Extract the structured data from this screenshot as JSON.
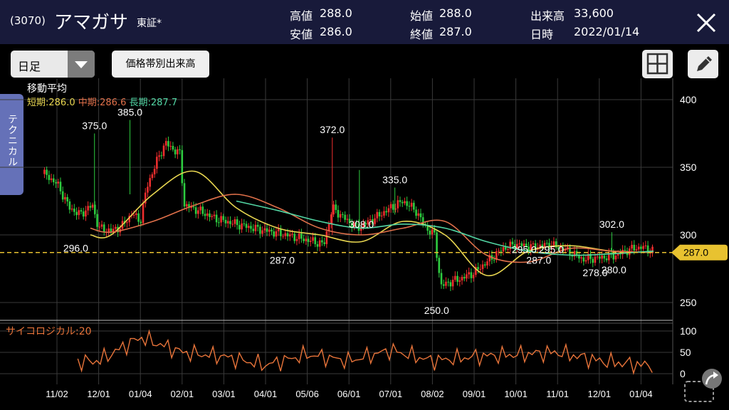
{
  "header": {
    "code": "(3070)",
    "name": "アマガサ",
    "exchange": "東証*",
    "stats": [
      {
        "label": "高値",
        "value": "288.0"
      },
      {
        "label": "安値",
        "value": "286.0"
      },
      {
        "label": "始値",
        "value": "288.0"
      },
      {
        "label": "終値",
        "value": "287.0"
      },
      {
        "label": "出来高",
        "value": "33,600"
      },
      {
        "label": "日時",
        "value": "2022/01/14"
      }
    ]
  },
  "toolbar": {
    "period": "日足",
    "volume_by_price": "価格帯別出来高"
  },
  "side_tab": {
    "label": "テクニカル"
  },
  "moving_average": {
    "title": "移動平均",
    "short_label": "短期:",
    "short_value": "286.0",
    "mid_label": "中期:",
    "mid_value": "286.6",
    "long_label": "長期:",
    "long_value": "287.7"
  },
  "oscillator": {
    "label": "サイコロジカル:20"
  },
  "colors": {
    "header_bg": "#181a3a",
    "up_candle": "#ef2e2e",
    "down_candle": "#2ecc40",
    "ma_short": "#e8d650",
    "ma_mid": "#e0704a",
    "ma_long": "#52d6a4",
    "oscillator": "#e8743a",
    "last_price": "#e8c230",
    "tab": "#6571b8"
  },
  "price_axis": {
    "ticks": [
      "400",
      "350",
      "300",
      "250"
    ],
    "min": 240,
    "max": 410
  },
  "osc_axis": {
    "ticks": [
      "100",
      "50",
      "0"
    ]
  },
  "x_ticks": [
    "11/02",
    "12/01",
    "01/04",
    "02/01",
    "03/01",
    "04/01",
    "05/06",
    "06/01",
    "07/01",
    "08/02",
    "09/01",
    "10/01",
    "11/01",
    "12/01",
    "01/04"
  ],
  "last_price": "287.0",
  "annotations": [
    {
      "text": "375.0",
      "date_idx": 0.9,
      "price": 375
    },
    {
      "text": "385.0",
      "date_idx": 1.75,
      "price": 385
    },
    {
      "text": "372.0",
      "date_idx": 6.6,
      "price": 372
    },
    {
      "text": "335.0",
      "date_idx": 8.1,
      "price": 335
    },
    {
      "text": "302.0",
      "date_idx": 13.3,
      "price": 302
    },
    {
      "text": "296.0",
      "date_idx": 0.45,
      "price": 296
    },
    {
      "text": "287.0",
      "date_idx": 5.4,
      "price": 287
    },
    {
      "text": "308.0",
      "date_idx": 7.3,
      "price": 308
    },
    {
      "text": "295.0",
      "date_idx": 11.2,
      "price": 295
    },
    {
      "text": "295.0",
      "date_idx": 11.85,
      "price": 295
    },
    {
      "text": "287.0",
      "date_idx": 11.55,
      "price": 287
    },
    {
      "text": "278.0",
      "date_idx": 12.9,
      "price": 278
    },
    {
      "text": "280.0",
      "date_idx": 13.35,
      "price": 280
    },
    {
      "text": "250.0",
      "date_idx": 9.1,
      "price": 250
    }
  ],
  "chart_data": {
    "type": "candlestick",
    "x_ticks": [
      "11/02",
      "12/01",
      "01/04",
      "02/01",
      "03/01",
      "04/01",
      "05/06",
      "06/01",
      "07/01",
      "08/02",
      "09/01",
      "10/01",
      "11/01",
      "12/01",
      "01/04"
    ],
    "price_ylim": [
      240,
      410
    ],
    "series": [
      {
        "name": "短期",
        "values": [
          300,
          300,
          330,
          347,
          320,
          305,
          300,
          295,
          310,
          300,
          270,
          288,
          292,
          288,
          287
        ]
      },
      {
        "name": "中期",
        "values": [
          305,
          302,
          310,
          322,
          330,
          320,
          305,
          300,
          305,
          310,
          285,
          280,
          290,
          288,
          287
        ]
      },
      {
        "name": "長期",
        "values": [
          null,
          null,
          null,
          null,
          325,
          318,
          310,
          305,
          308,
          305,
          295,
          288,
          285,
          286,
          288
        ]
      },
      {
        "name": "サイコロジカル",
        "values": [
          25,
          30,
          85,
          50,
          40,
          20,
          45,
          30,
          55,
          30,
          40,
          45,
          50,
          30,
          20
        ]
      }
    ],
    "osc_ylim": [
      0,
      100
    ],
    "osc_ticks": [
      "100",
      "50",
      "0"
    ],
    "last_value": 287.0
  }
}
